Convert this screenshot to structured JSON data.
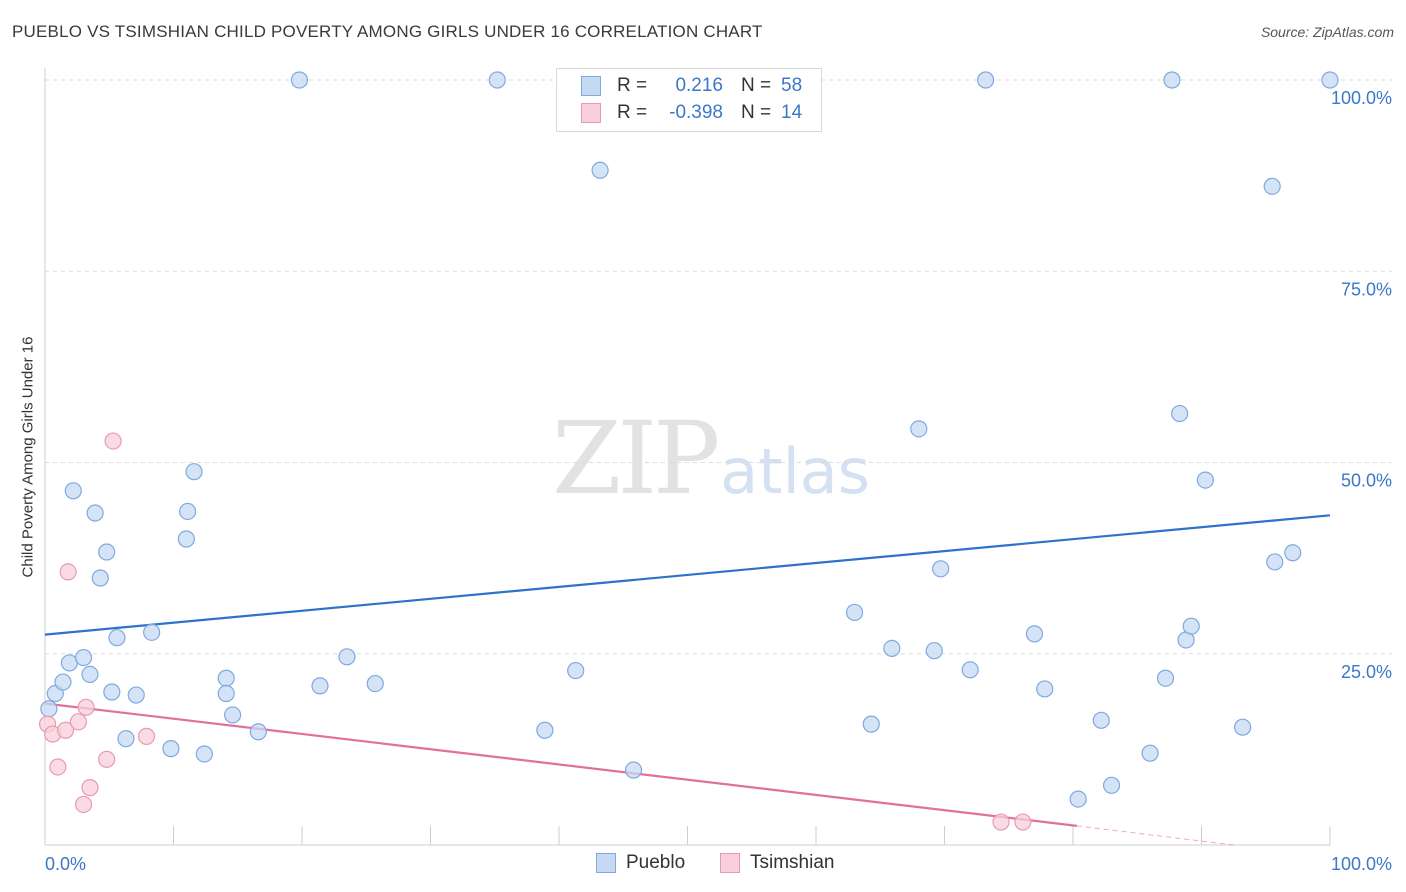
{
  "title": "PUEBLO VS TSIMSHIAN CHILD POVERTY AMONG GIRLS UNDER 16 CORRELATION CHART",
  "source": "Source: ZipAtlas.com",
  "watermark": {
    "zip": "ZIP",
    "atlas": "atlas"
  },
  "legend": {
    "rows": [
      {
        "r_label": "R =",
        "r_value": "0.216",
        "n_label": "N =",
        "n_value": "58"
      },
      {
        "r_label": "R =",
        "r_value": "-0.398",
        "n_label": "N =",
        "n_value": "14"
      }
    ]
  },
  "bottom_legend": [
    "Pueblo",
    "Tsimshian"
  ],
  "colors": {
    "pueblo_fill": "#c5d9f3",
    "pueblo_stroke": "#7fa9df",
    "pueblo_line": "#2f72cc",
    "tsimshian_fill": "#f8cfdb",
    "tsimshian_stroke": "#e89ab1",
    "tsimshian_line": "#e3709a",
    "tick_label": "#3a78c9",
    "grid": "#dcdcdc"
  },
  "chart_data": {
    "type": "scatter",
    "title": "PUEBLO VS TSIMSHIAN CHILD POVERTY AMONG GIRLS UNDER 16 CORRELATION CHART",
    "xlabel": "",
    "ylabel": "Child Poverty Among Girls Under 16",
    "xlim": [
      0,
      100
    ],
    "ylim": [
      0,
      100
    ],
    "x_tick_labels": [
      "0.0%",
      "100.0%"
    ],
    "y_ticks": [
      25,
      50,
      75,
      100
    ],
    "y_tick_labels": [
      "25.0%",
      "50.0%",
      "75.0%",
      "100.0%"
    ],
    "grid": "horizontal dashed",
    "legend_position": "top-center",
    "series": [
      {
        "name": "Pueblo",
        "r": 0.216,
        "n": 58,
        "trend": {
          "x": [
            0,
            100
          ],
          "y": [
            27.5,
            43.1
          ]
        },
        "points": [
          [
            0.3,
            17.8
          ],
          [
            0.8,
            19.8
          ],
          [
            1.4,
            21.3
          ],
          [
            1.9,
            23.8
          ],
          [
            2.2,
            46.3
          ],
          [
            3.0,
            24.5
          ],
          [
            3.5,
            22.3
          ],
          [
            3.9,
            43.4
          ],
          [
            4.3,
            34.9
          ],
          [
            4.8,
            38.3
          ],
          [
            5.2,
            20.0
          ],
          [
            5.6,
            27.1
          ],
          [
            6.3,
            13.9
          ],
          [
            7.1,
            19.6
          ],
          [
            8.3,
            27.8
          ],
          [
            9.8,
            12.6
          ],
          [
            11.0,
            40.0
          ],
          [
            11.1,
            43.6
          ],
          [
            11.6,
            48.8
          ],
          [
            12.4,
            11.9
          ],
          [
            14.1,
            21.8
          ],
          [
            14.1,
            19.8
          ],
          [
            14.6,
            17.0
          ],
          [
            16.6,
            14.8
          ],
          [
            19.8,
            100
          ],
          [
            21.4,
            20.8
          ],
          [
            23.5,
            24.6
          ],
          [
            25.7,
            21.1
          ],
          [
            35.2,
            100
          ],
          [
            38.9,
            15.0
          ],
          [
            41.3,
            22.8
          ],
          [
            43.2,
            88.2
          ],
          [
            45.8,
            9.8
          ],
          [
            63.0,
            30.4
          ],
          [
            64.3,
            15.8
          ],
          [
            65.9,
            25.7
          ],
          [
            68.0,
            54.4
          ],
          [
            69.2,
            25.4
          ],
          [
            69.7,
            36.1
          ],
          [
            72.0,
            22.9
          ],
          [
            73.2,
            100
          ],
          [
            77.0,
            27.6
          ],
          [
            77.8,
            20.4
          ],
          [
            80.4,
            6.0
          ],
          [
            82.2,
            16.3
          ],
          [
            83.0,
            7.8
          ],
          [
            86.0,
            12.0
          ],
          [
            87.2,
            21.8
          ],
          [
            87.7,
            100
          ],
          [
            88.3,
            56.4
          ],
          [
            88.8,
            26.8
          ],
          [
            89.2,
            28.6
          ],
          [
            90.3,
            47.7
          ],
          [
            93.2,
            15.4
          ],
          [
            95.5,
            86.1
          ],
          [
            95.7,
            37.0
          ],
          [
            97.1,
            38.2
          ],
          [
            100.0,
            100
          ]
        ]
      },
      {
        "name": "Tsimshian",
        "r": -0.398,
        "n": 14,
        "trend": {
          "x": [
            0,
            80.3,
            92.5
          ],
          "y": [
            18.5,
            2.5,
            0.0
          ],
          "dashed_from_x": 80.3
        },
        "points": [
          [
            0.2,
            15.8
          ],
          [
            0.6,
            14.5
          ],
          [
            1.0,
            10.2
          ],
          [
            1.6,
            15.0
          ],
          [
            1.8,
            35.7
          ],
          [
            2.6,
            16.1
          ],
          [
            3.0,
            5.3
          ],
          [
            3.2,
            18.0
          ],
          [
            3.5,
            7.5
          ],
          [
            4.8,
            11.2
          ],
          [
            5.3,
            52.8
          ],
          [
            7.9,
            14.2
          ],
          [
            74.4,
            3.0
          ],
          [
            76.1,
            3.0
          ]
        ]
      }
    ]
  }
}
